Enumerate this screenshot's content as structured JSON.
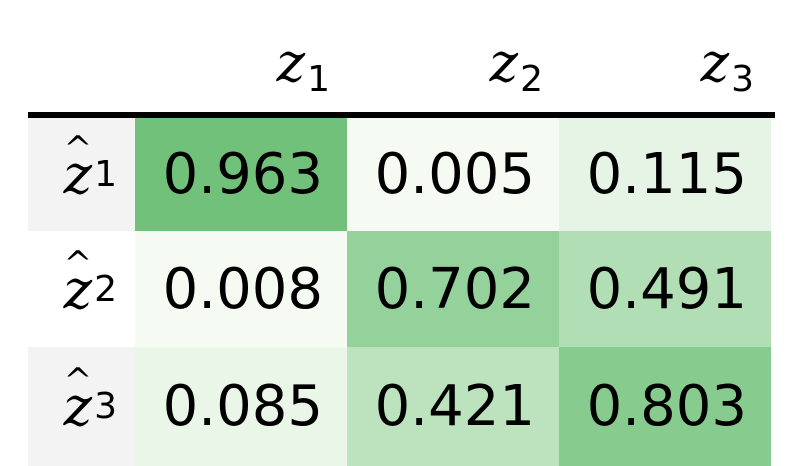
{
  "chart_data": {
    "type": "heatmap",
    "columns": [
      {
        "base": "z",
        "sub": "1"
      },
      {
        "base": "z",
        "sub": "2"
      },
      {
        "base": "z",
        "sub": "3"
      }
    ],
    "rows": [
      {
        "base": "z",
        "hat": "^",
        "sub": "1"
      },
      {
        "base": "z",
        "hat": "^",
        "sub": "2"
      },
      {
        "base": "z",
        "hat": "^",
        "sub": "3"
      }
    ],
    "values": [
      [
        "0.963",
        "0.005",
        "0.115"
      ],
      [
        "0.008",
        "0.702",
        "0.491"
      ],
      [
        "0.085",
        "0.421",
        "0.803"
      ]
    ],
    "colorscale": {
      "low": "#f6fbf3",
      "high": "#6cbf76",
      "domain": [
        0,
        1
      ]
    }
  }
}
